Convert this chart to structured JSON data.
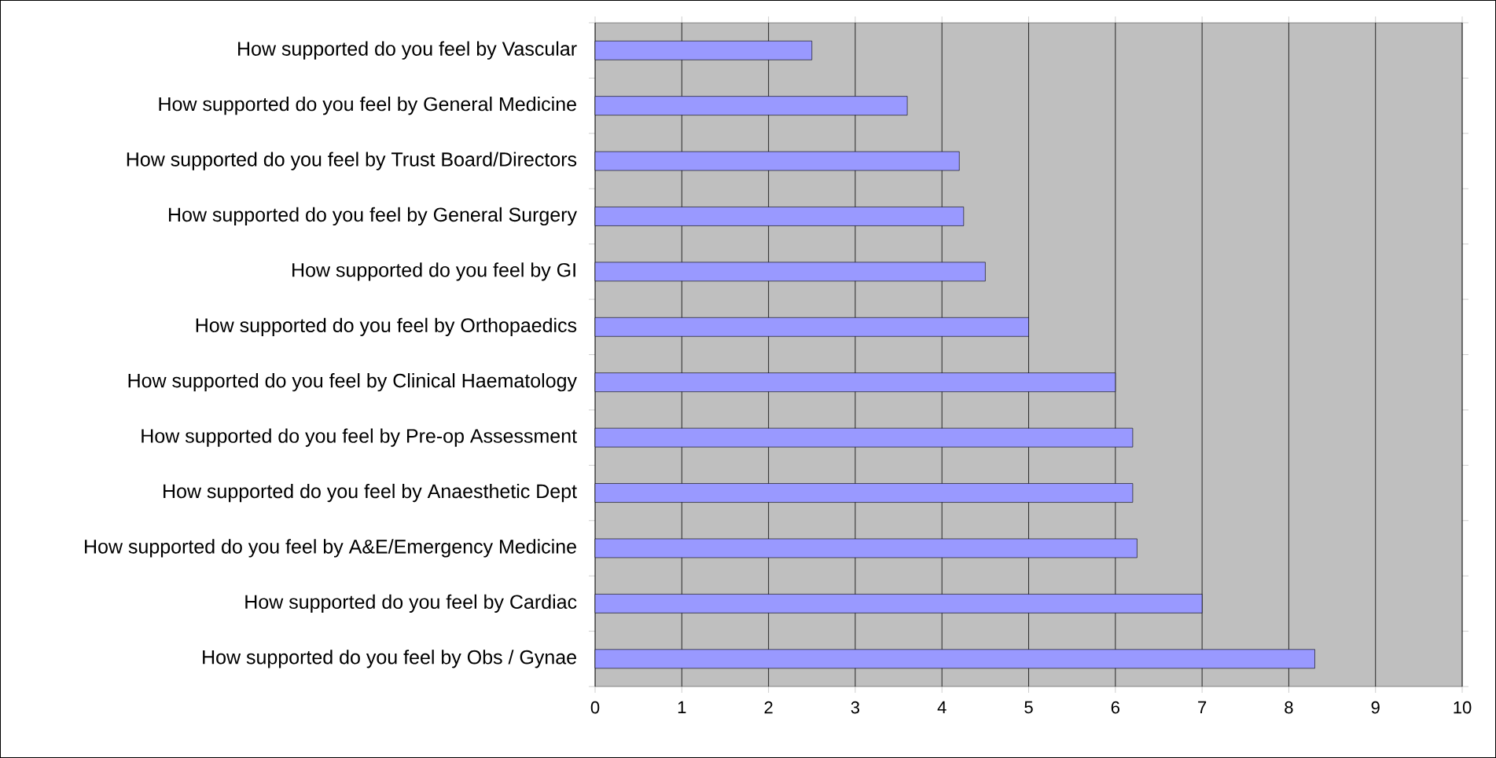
{
  "chart_data": {
    "type": "bar",
    "orientation": "horizontal",
    "categories": [
      "How supported do you feel by Vascular",
      "How supported do you feel by General Medicine",
      "How supported do you feel by Trust Board/Directors",
      "How supported do you feel by General Surgery",
      "How supported do you feel by GI",
      "How supported do you feel by Orthopaedics",
      "How supported do you feel by Clinical Haematology",
      "How supported do you feel by Pre-op Assessment",
      "How supported do you feel by Anaesthetic Dept",
      "How supported do you feel by A&E/Emergency Medicine",
      "How supported do you feel by Cardiac",
      "How supported do you feel by Obs / Gynae"
    ],
    "values": [
      2.5,
      3.6,
      4.2,
      4.25,
      4.5,
      5.0,
      6.0,
      6.2,
      6.2,
      6.25,
      7.0,
      8.3
    ],
    "color": "#9999ff",
    "xlim": [
      0,
      10
    ],
    "xticks": [
      0,
      1,
      2,
      3,
      4,
      5,
      6,
      7,
      8,
      9,
      10
    ],
    "grid": "x"
  }
}
